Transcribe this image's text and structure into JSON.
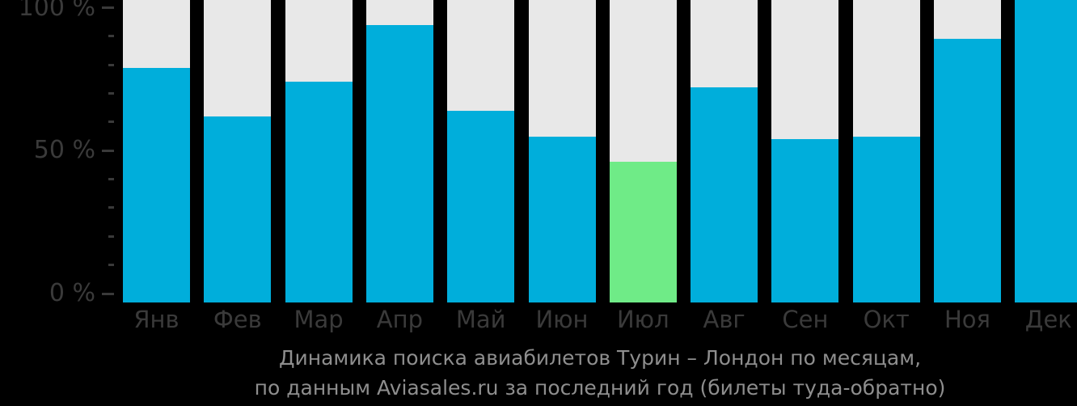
{
  "chart_data": {
    "type": "bar",
    "categories": [
      "Янв",
      "Фев",
      "Мар",
      "Апр",
      "Май",
      "Июн",
      "Июл",
      "Авг",
      "Сен",
      "Окт",
      "Ноя",
      "Дек"
    ],
    "values": [
      79,
      62,
      74,
      94,
      64,
      55,
      46,
      72,
      54,
      55,
      89,
      100
    ],
    "unit": "%",
    "highlight_index": 6,
    "title": "Динамика поиска авиабилетов Турин – Лондон по месяцам, по данным Aviasales.ru за последний год (билеты туда-обратно)",
    "ylim": [
      0,
      100
    ],
    "grid": false,
    "legend": false
  },
  "axis": {
    "major_ticks": [
      {
        "label": "100 %",
        "value": 100
      },
      {
        "label": "50 %",
        "value": 50
      },
      {
        "label": "0 %",
        "value": 0
      }
    ],
    "minor_tick_values": [
      90,
      80,
      70,
      60,
      40,
      30,
      20,
      10
    ]
  },
  "caption": {
    "line1": "Динамика поиска авиабилетов Турин – Лондон по месяцам,",
    "line2": "по данным Aviasales.ru за последний год (билеты туда-обратно)"
  },
  "colors": {
    "background": "#000000",
    "bar_track": "#E8E8E8",
    "bar_fill": "#00AEDB",
    "bar_highlight": "#6FEB87",
    "axis_text": "#3A3A3A",
    "tick_mark": "#3A3A3A",
    "caption_text": "#8E8E8E"
  }
}
